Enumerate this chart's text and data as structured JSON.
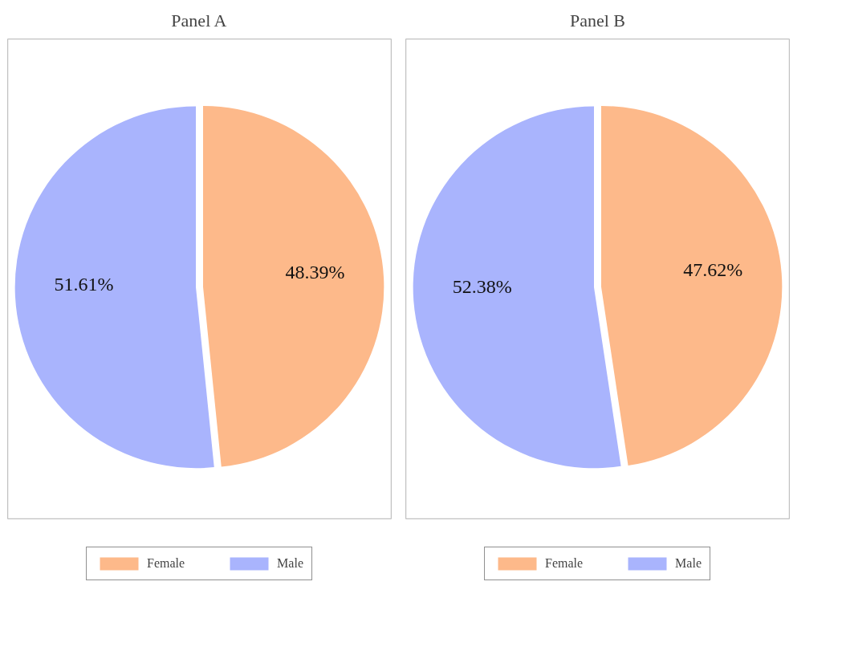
{
  "chart_data": [
    {
      "type": "pie",
      "title": "Panel A",
      "categories": [
        "Female",
        "Male"
      ],
      "values": [
        48.39,
        51.61
      ],
      "colors": [
        "#fdb98a",
        "#a9b4fd"
      ],
      "value_labels": [
        "48.39%",
        "51.61%"
      ],
      "legend": "bottom"
    },
    {
      "type": "pie",
      "title": "Panel B",
      "categories": [
        "Female",
        "Male"
      ],
      "values": [
        47.62,
        52.38
      ],
      "colors": [
        "#fdb98a",
        "#a9b4fd"
      ],
      "value_labels": [
        "47.62%",
        "52.38%"
      ],
      "legend": "bottom"
    }
  ]
}
